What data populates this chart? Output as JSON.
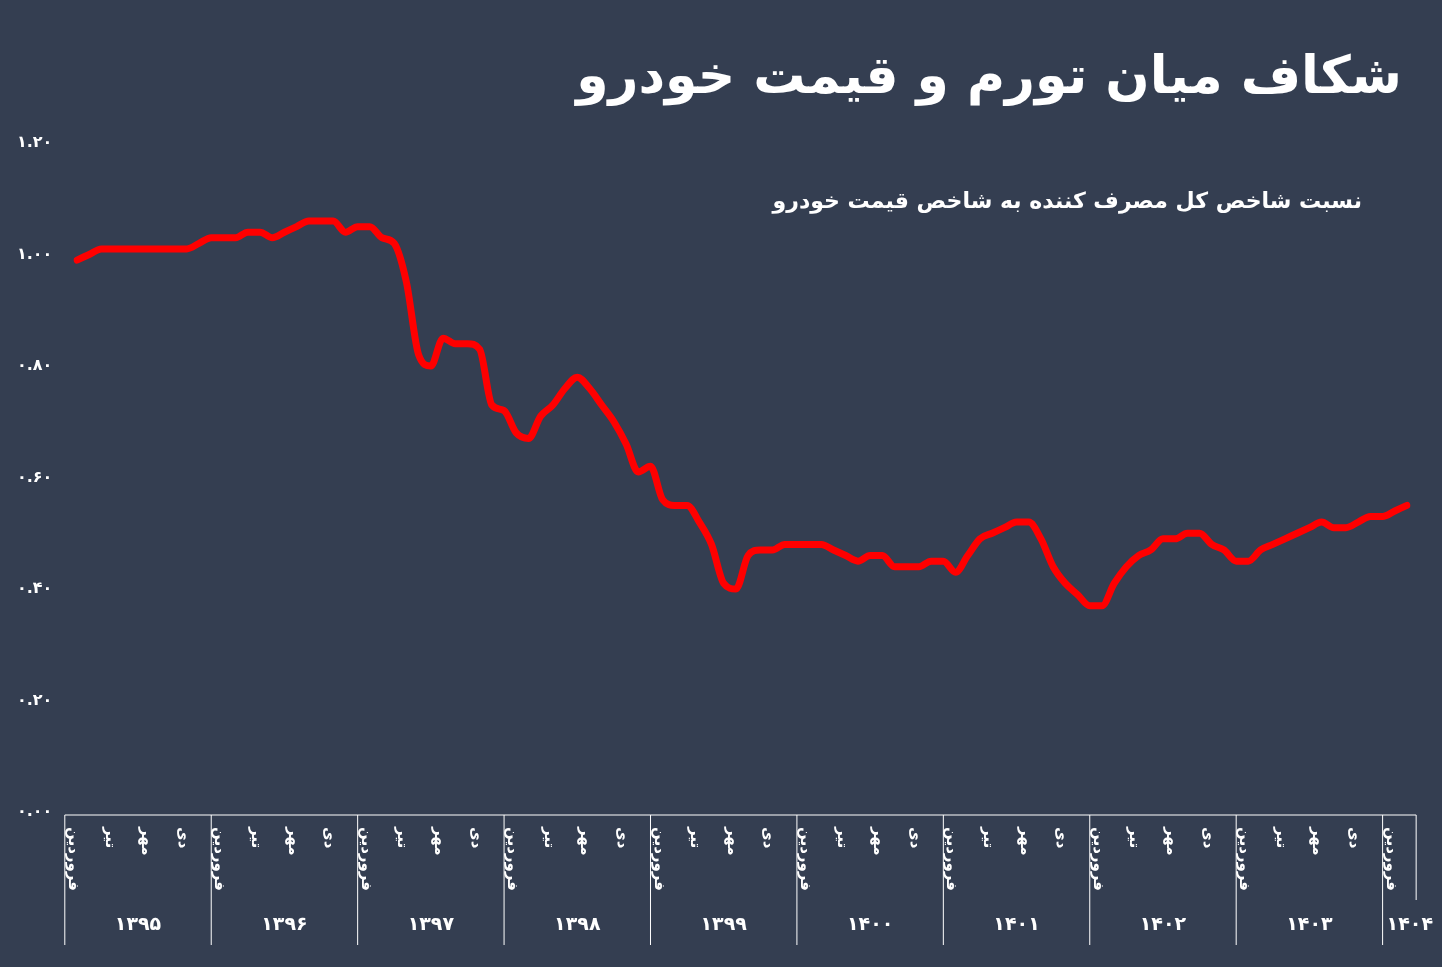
{
  "chart_data": {
    "type": "line",
    "title": "شکاف میان تورم  و قیمت خودرو",
    "subtitle": "نسبت شاخص کل مصرف کننده به شاخص قیمت خودرو",
    "categories": [
      "فروردین",
      null,
      null,
      "تیر",
      null,
      null,
      "مهر",
      null,
      null,
      "دی",
      null,
      null,
      "فروردین",
      null,
      null,
      "تیر",
      null,
      null,
      "مهر",
      null,
      null,
      "دی",
      null,
      null,
      "فروردین",
      null,
      null,
      "تیر",
      null,
      null,
      "مهر",
      null,
      null,
      "دی",
      null,
      null,
      "فروردین",
      null,
      null,
      "تیر",
      null,
      null,
      "مهر",
      null,
      null,
      "دی",
      null,
      null,
      "فروردین",
      null,
      null,
      "تیر",
      null,
      null,
      "مهر",
      null,
      null,
      "دی",
      null,
      null,
      "فروردین",
      null,
      null,
      "تیر",
      null,
      null,
      "مهر",
      null,
      null,
      "دی",
      null,
      null,
      "فروردین",
      null,
      null,
      "تیر",
      null,
      null,
      "مهر",
      null,
      null,
      "دی",
      null,
      null,
      "فروردین",
      null,
      null,
      "تیر",
      null,
      null,
      "مهر",
      null,
      null,
      "دی",
      null,
      null,
      "فروردین",
      null,
      null,
      "تیر",
      null,
      null,
      "مهر",
      null,
      null,
      "دی",
      null,
      null,
      "فروردین",
      null
    ],
    "series": [
      {
        "color": "#ff0000",
        "values": [
          0.99,
          1.0,
          1.01,
          1.01,
          1.01,
          1.01,
          1.01,
          1.01,
          1.01,
          1.01,
          1.02,
          1.03,
          1.03,
          1.03,
          1.04,
          1.04,
          1.03,
          1.04,
          1.05,
          1.06,
          1.06,
          1.06,
          1.04,
          1.05,
          1.05,
          1.03,
          1.02,
          0.95,
          0.82,
          0.8,
          0.85,
          0.84,
          0.84,
          0.83,
          0.73,
          0.72,
          0.68,
          0.67,
          0.71,
          0.73,
          0.76,
          0.78,
          0.76,
          0.73,
          0.7,
          0.66,
          0.61,
          0.62,
          0.56,
          0.55,
          0.55,
          0.52,
          0.48,
          0.41,
          0.4,
          0.46,
          0.47,
          0.47,
          0.48,
          0.48,
          0.48,
          0.48,
          0.47,
          0.46,
          0.45,
          0.46,
          0.46,
          0.44,
          0.44,
          0.44,
          0.45,
          0.45,
          0.43,
          0.46,
          0.49,
          0.5,
          0.51,
          0.52,
          0.52,
          0.49,
          0.44,
          0.41,
          0.39,
          0.37,
          0.37,
          0.41,
          0.44,
          0.46,
          0.47,
          0.49,
          0.49,
          0.5,
          0.5,
          0.48,
          0.47,
          0.45,
          0.45,
          0.47,
          0.48,
          0.49,
          0.5,
          0.51,
          0.52,
          0.51,
          0.51,
          0.52,
          0.53,
          0.53,
          0.54,
          0.55
        ]
      }
    ],
    "ylim": [
      0,
      1.2
    ],
    "yticks": [
      {
        "value": 0,
        "label": "۰.۰۰"
      },
      {
        "value": 0.2,
        "label": "۰.۲۰"
      },
      {
        "value": 0.4,
        "label": "۰.۴۰"
      },
      {
        "value": 0.6,
        "label": "۰.۶۰"
      },
      {
        "value": 0.8,
        "label": "۰.۸۰"
      },
      {
        "value": 1.0,
        "label": "۱.۰۰"
      },
      {
        "value": 1.2,
        "label": "۱.۲۰"
      }
    ],
    "annotations": [
      "۱۳۹۵",
      "۱۳۹۶",
      "۱۳۹۷",
      "۱۳۹۸",
      "۱۳۹۹",
      "۱۴۰۰",
      "۱۴۰۱",
      "۱۴۰۲",
      "۱۴۰۳",
      "۱۴۰۴"
    ],
    "grid": false,
    "legend": false,
    "marker": "none",
    "line_style": "solid"
  }
}
